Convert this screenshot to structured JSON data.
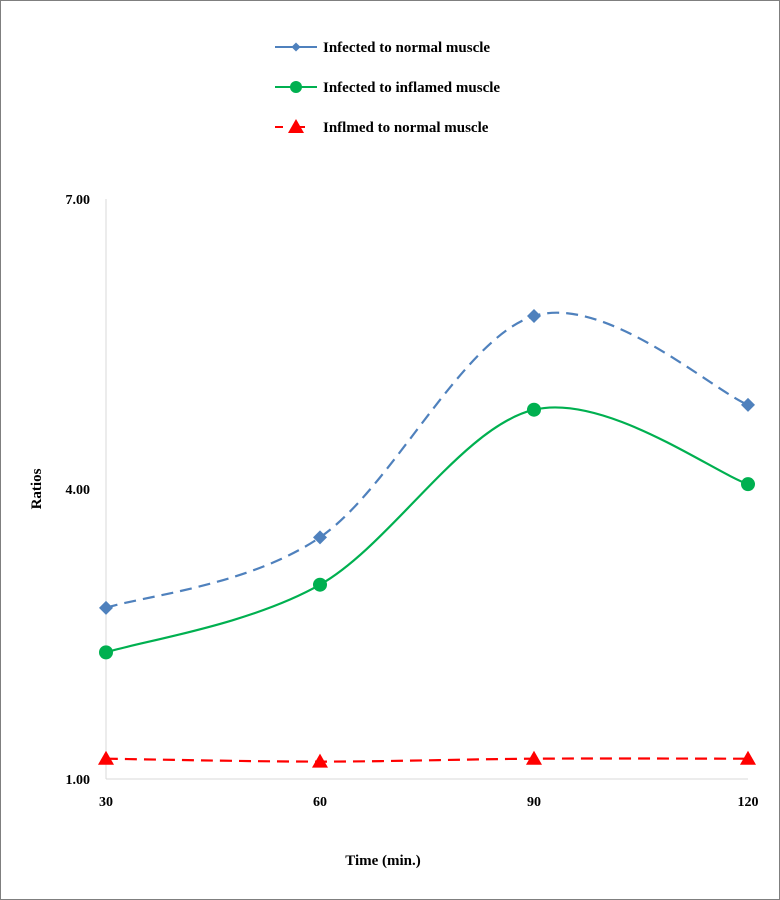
{
  "chart_data": {
    "type": "line",
    "title": "",
    "xlabel": "Time (min.)",
    "ylabel": "Ratios",
    "x": [
      30,
      60,
      90,
      120
    ],
    "x_tick_labels": [
      "30",
      "60",
      "90",
      "120"
    ],
    "y_tick_labels": [
      "1.00",
      "4.00",
      "7.00"
    ],
    "y_ticks": [
      1,
      4,
      7
    ],
    "ylim": [
      1,
      7
    ],
    "grid": false,
    "legend_position": "top",
    "smoothed": true,
    "series": [
      {
        "name": "Infected to normal muscle",
        "values": [
          2.77,
          3.5,
          5.79,
          4.87
        ],
        "color": "#4f81bd",
        "marker": "diamond",
        "dash": "dashed",
        "legend_dash": "solid"
      },
      {
        "name": "Infected to inflamed muscle",
        "values": [
          2.31,
          3.01,
          4.82,
          4.05
        ],
        "color": "#00b050",
        "marker": "circle",
        "dash": "solid",
        "legend_dash": "solid"
      },
      {
        "name": "Inflmed to normal muscle",
        "values": [
          1.21,
          1.18,
          1.21,
          1.21
        ],
        "color": "#ff0000",
        "marker": "triangle",
        "dash": "dashed",
        "legend_dash": "dashed"
      }
    ]
  }
}
